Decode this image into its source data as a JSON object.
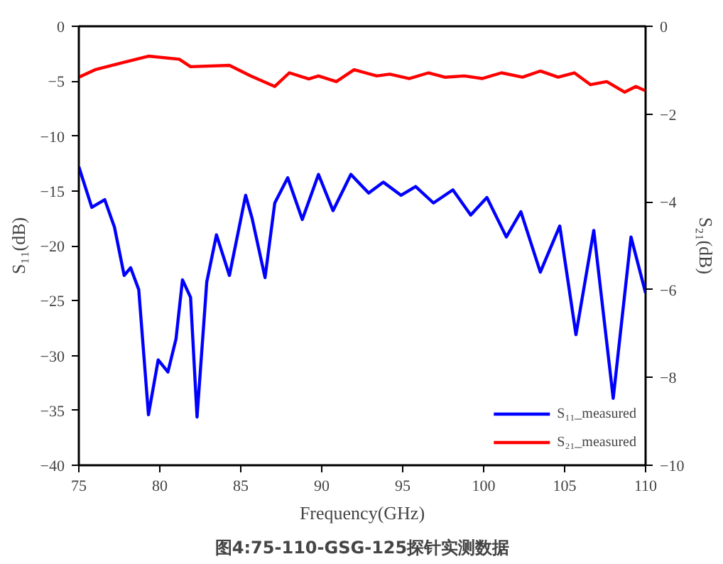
{
  "chart_data": {
    "type": "line",
    "xlabel": "Frequency(GHz)",
    "ylabel": "S₁₁(dB)",
    "y2label": "S₂₁(dB)",
    "annotations": [
      "图4:75-110-GSG-125探针实测数据"
    ],
    "xlim": [
      75,
      110
    ],
    "xticks": [
      75,
      80,
      85,
      90,
      95,
      100,
      105,
      110
    ],
    "ylim": [
      -40,
      0
    ],
    "yticks": [
      -40,
      -35,
      -30,
      -25,
      -20,
      -15,
      -10,
      -5,
      0
    ],
    "y2lim": [
      -10,
      0
    ],
    "y2ticks": [
      -10,
      -8,
      -6,
      -4,
      -2,
      0
    ],
    "grid": false,
    "legend": "bottom right",
    "line_style": "solid",
    "marker": "none",
    "series": [
      {
        "name": "S₁₁_measured",
        "color": "#0000ff",
        "x": [
          75,
          75.8,
          76.6,
          77.2,
          77.8,
          78.2,
          78.7,
          79.3,
          79.9,
          80.5,
          81.0,
          81.4,
          81.9,
          82.3,
          82.9,
          83.5,
          84.3,
          85.3,
          85.7,
          86.5,
          87.1,
          87.9,
          88.8,
          89.8,
          90.7,
          91.8,
          92.9,
          93.8,
          94.9,
          95.8,
          96.9,
          98.1,
          99.2,
          100.2,
          101.4,
          102.3,
          103.5,
          104.7,
          105.7,
          106.8,
          108.0,
          109.1,
          110
        ],
        "values": [
          -12.8,
          -16.5,
          -15.8,
          -18.3,
          -22.7,
          -22.0,
          -24.0,
          -35.4,
          -30.4,
          -31.5,
          -28.5,
          -23.1,
          -24.7,
          -35.6,
          -23.3,
          -19.0,
          -22.7,
          -15.4,
          -17.5,
          -22.9,
          -16.1,
          -13.8,
          -17.6,
          -13.5,
          -16.8,
          -13.5,
          -15.2,
          -14.2,
          -15.4,
          -14.6,
          -16.1,
          -14.9,
          -17.2,
          -15.6,
          -19.2,
          -16.9,
          -22.4,
          -18.2,
          -28.1,
          -18.6,
          -33.9,
          -19.2,
          -24.3
        ]
      },
      {
        "name": "S₂₁_measured",
        "color": "#ff0000",
        "axis": "y2",
        "x": [
          75,
          76.0,
          77.8,
          79.3,
          81.2,
          81.9,
          84.3,
          85.6,
          87.1,
          88.0,
          89.2,
          89.8,
          90.9,
          92.0,
          93.4,
          94.2,
          95.4,
          96.6,
          97.6,
          98.8,
          99.9,
          101.1,
          102.4,
          103.5,
          104.6,
          105.6,
          106.6,
          107.6,
          108.7,
          109.4,
          110
        ],
        "values": [
          -1.16,
          -0.99,
          -0.82,
          -0.68,
          -0.75,
          -0.92,
          -0.89,
          -1.13,
          -1.37,
          -1.06,
          -1.2,
          -1.13,
          -1.26,
          -0.99,
          -1.13,
          -1.09,
          -1.19,
          -1.06,
          -1.16,
          -1.13,
          -1.19,
          -1.06,
          -1.16,
          -1.02,
          -1.16,
          -1.06,
          -1.33,
          -1.26,
          -1.5,
          -1.37,
          -1.47
        ]
      }
    ]
  }
}
